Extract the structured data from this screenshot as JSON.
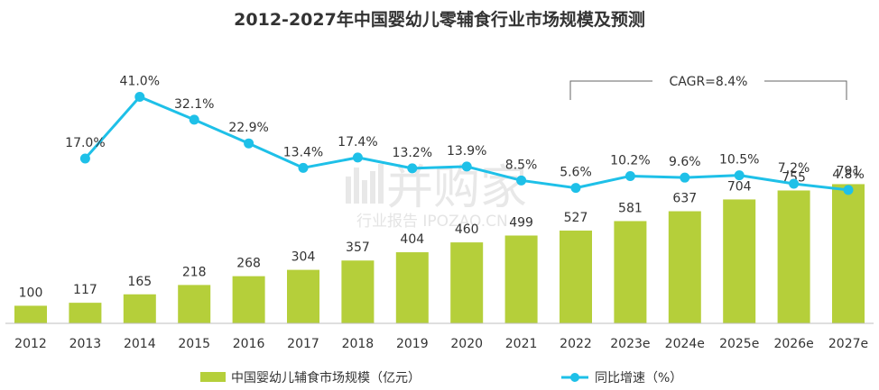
{
  "chart_data": {
    "type": "bar",
    "title": "2012-2027年中国婴幼儿零辅食行业市场规模及预测",
    "categories": [
      "2012",
      "2013",
      "2014",
      "2015",
      "2016",
      "2017",
      "2018",
      "2019",
      "2020",
      "2021",
      "2022",
      "2023e",
      "2024e",
      "2025e",
      "2026e",
      "2027e"
    ],
    "series": [
      {
        "name": "中国婴幼儿辅食市场规模（亿元）",
        "type": "bar",
        "color": "#b5cf3a",
        "values": [
          100,
          117,
          165,
          218,
          268,
          304,
          357,
          404,
          460,
          499,
          527,
          581,
          637,
          704,
          755,
          791
        ]
      },
      {
        "name": "同比增速（%）",
        "type": "line",
        "color": "#1ec0e8",
        "values": [
          null,
          17.0,
          41.0,
          32.1,
          22.9,
          13.4,
          17.4,
          13.2,
          13.9,
          8.5,
          5.6,
          10.2,
          9.6,
          10.5,
          7.2,
          4.8
        ],
        "labels": [
          null,
          "17.0%",
          "41.0%",
          "32.1%",
          "22.9%",
          "13.4%",
          "17.4%",
          "13.2%",
          "13.9%",
          "8.5%",
          "5.6%",
          "10.2%",
          "9.6%",
          "10.5%",
          "7.2%",
          "4.8%"
        ]
      }
    ],
    "annotation": {
      "text": "CAGR=8.4%",
      "from_category": "2022",
      "to_category": "2027e"
    },
    "legend_position": "bottom",
    "grid": false
  },
  "watermark": {
    "main": "并购家",
    "sub": "行业报告 IPOZAO.CN"
  }
}
